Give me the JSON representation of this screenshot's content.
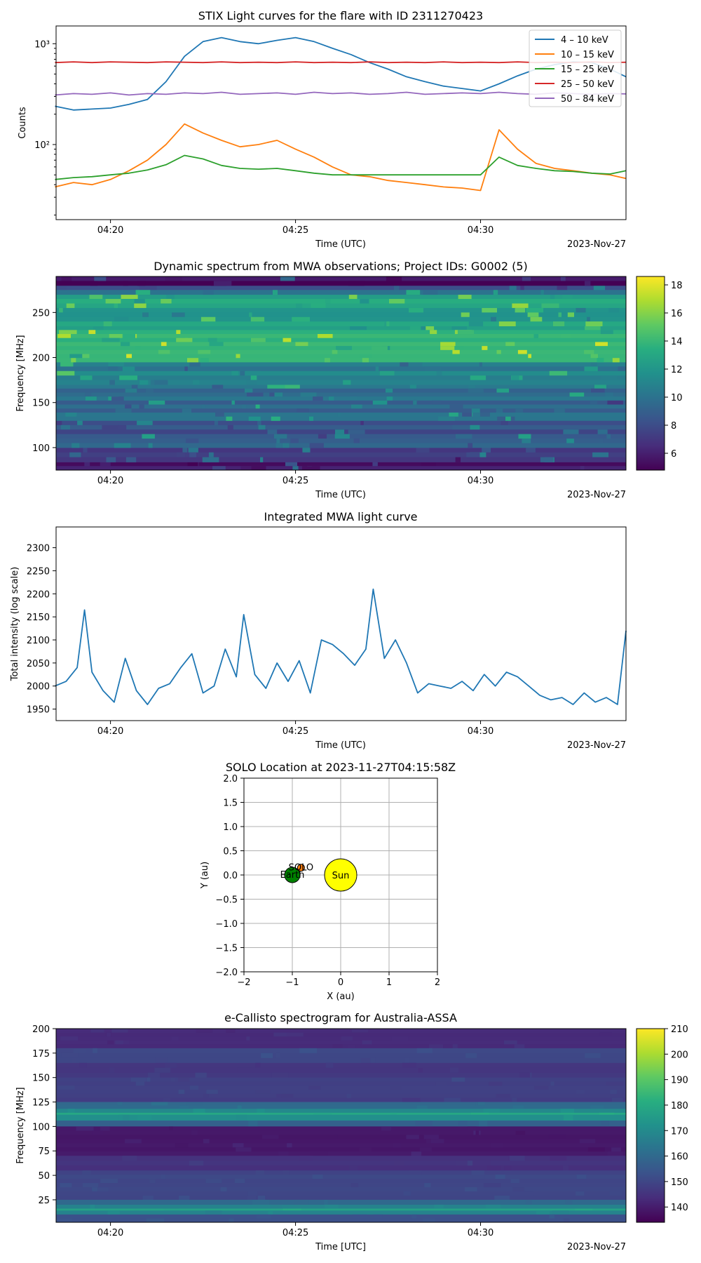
{
  "chart_data": [
    {
      "type": "line",
      "title": "STIX Light curves for the flare with ID 2311270423",
      "xlabel": "Time (UTC)",
      "ylabel": "Counts",
      "date_label": "2023-Nov-27",
      "x_range": [
        "04:18:32",
        "04:33:56"
      ],
      "x_ticks": [
        "04:20",
        "04:25",
        "04:30"
      ],
      "y_scale": "log",
      "ylim": [
        18,
        1500
      ],
      "y_ticks": [
        "10²",
        "10³"
      ],
      "legend_position": "top-right",
      "x_minutes": [
        18.5,
        19.0,
        19.5,
        20.0,
        20.5,
        21.0,
        21.5,
        22.0,
        22.5,
        23.0,
        23.5,
        24.0,
        24.5,
        25.0,
        25.5,
        26.0,
        26.5,
        27.0,
        27.5,
        28.0,
        28.5,
        29.0,
        29.5,
        30.0,
        30.5,
        31.0,
        31.5,
        32.0,
        32.5,
        33.0,
        33.5,
        33.93
      ],
      "series": [
        {
          "name": "4 – 10 keV",
          "color": "#1f77b4",
          "values": [
            240,
            220,
            225,
            230,
            250,
            280,
            420,
            750,
            1050,
            1150,
            1050,
            1000,
            1080,
            1150,
            1050,
            900,
            780,
            650,
            560,
            470,
            420,
            380,
            360,
            340,
            400,
            480,
            560,
            620,
            660,
            650,
            560,
            470
          ]
        },
        {
          "name": "10 – 15 keV",
          "color": "#ff7f0e",
          "values": [
            38,
            42,
            40,
            45,
            55,
            70,
            100,
            160,
            130,
            110,
            95,
            100,
            110,
            90,
            75,
            60,
            50,
            48,
            44,
            42,
            40,
            38,
            37,
            35,
            140,
            90,
            65,
            58,
            55,
            52,
            50,
            46
          ]
        },
        {
          "name": "15 – 25 keV",
          "color": "#2ca02c",
          "values": [
            45,
            47,
            48,
            50,
            52,
            56,
            63,
            78,
            72,
            62,
            58,
            57,
            58,
            55,
            52,
            50,
            50,
            50,
            50,
            50,
            50,
            50,
            50,
            50,
            75,
            62,
            58,
            55,
            54,
            52,
            51,
            55
          ]
        },
        {
          "name": "25 – 50 keV",
          "color": "#d62728",
          "values": [
            650,
            660,
            650,
            660,
            655,
            650,
            660,
            655,
            650,
            660,
            650,
            655,
            650,
            660,
            650,
            655,
            650,
            660,
            650,
            655,
            650,
            660,
            650,
            655,
            650,
            660,
            650,
            655,
            650,
            660,
            650,
            655
          ]
        },
        {
          "name": "50 – 84 keV",
          "color": "#9467bd",
          "values": [
            310,
            320,
            315,
            325,
            310,
            320,
            315,
            325,
            320,
            330,
            315,
            320,
            325,
            315,
            330,
            320,
            325,
            315,
            320,
            330,
            315,
            320,
            325,
            320,
            330,
            320,
            315,
            325,
            320,
            315,
            320,
            318
          ]
        }
      ]
    },
    {
      "type": "heatmap",
      "title": "Dynamic spectrum from MWA observations; Project IDs: G0002 (5)",
      "ylabel": "Frequency [MHz]",
      "xlabel": "Time (UTC)",
      "date_label": "2023-Nov-27",
      "x_ticks": [
        "04:20",
        "04:25",
        "04:30"
      ],
      "ylim": [
        75,
        290
      ],
      "y_ticks": [
        100,
        150,
        200,
        250
      ],
      "colorbar": {
        "min": 4.8,
        "max": 18.6,
        "ticks": [
          6,
          8,
          10,
          12,
          14,
          16,
          18
        ],
        "colormap": "viridis"
      },
      "band_levels": [
        {
          "freq_from": 75,
          "freq_to": 84,
          "level": 5.2
        },
        {
          "freq_from": 84,
          "freq_to": 100,
          "level": 7.5
        },
        {
          "freq_from": 100,
          "freq_to": 130,
          "level": 8.6
        },
        {
          "freq_from": 130,
          "freq_to": 170,
          "level": 9.6
        },
        {
          "freq_from": 170,
          "freq_to": 195,
          "level": 11.0
        },
        {
          "freq_from": 195,
          "freq_to": 235,
          "level": 13.4
        },
        {
          "freq_from": 235,
          "freq_to": 270,
          "level": 12.4
        },
        {
          "freq_from": 270,
          "freq_to": 280,
          "level": 9.0
        },
        {
          "freq_from": 280,
          "freq_to": 290,
          "level": 5.2
        }
      ]
    },
    {
      "type": "line",
      "title": "Integrated MWA light curve",
      "ylabel": "Total intensity (log scale)",
      "xlabel": "Time (UTC)",
      "date_label": "2023-Nov-27",
      "x_ticks": [
        "04:20",
        "04:25",
        "04:30"
      ],
      "ylim": [
        1925,
        2345
      ],
      "y_ticks": [
        1950,
        2000,
        2050,
        2100,
        2150,
        2200,
        2250,
        2300
      ],
      "x_minutes": [
        18.5,
        18.8,
        19.1,
        19.3,
        19.5,
        19.8,
        20.1,
        20.4,
        20.7,
        21.0,
        21.3,
        21.6,
        21.9,
        22.2,
        22.5,
        22.8,
        23.1,
        23.4,
        23.6,
        23.9,
        24.2,
        24.5,
        24.8,
        25.1,
        25.4,
        25.7,
        26.0,
        26.3,
        26.6,
        26.9,
        27.1,
        27.4,
        27.7,
        28.0,
        28.3,
        28.6,
        28.9,
        29.2,
        29.5,
        29.8,
        30.1,
        30.4,
        30.7,
        31.0,
        31.3,
        31.6,
        31.9,
        32.2,
        32.5,
        32.8,
        33.1,
        33.4,
        33.7,
        33.93
      ],
      "series": [
        {
          "name": "",
          "color": "#1f77b4",
          "values": [
            2000,
            2010,
            2040,
            2165,
            2030,
            1990,
            1965,
            2060,
            1990,
            1960,
            1995,
            2005,
            2040,
            2070,
            1985,
            2000,
            2080,
            2020,
            2155,
            2025,
            1995,
            2050,
            2010,
            2055,
            1985,
            2100,
            2090,
            2070,
            2045,
            2080,
            2210,
            2060,
            2100,
            2050,
            1985,
            2005,
            2000,
            1995,
            2010,
            1990,
            2025,
            2000,
            2030,
            2020,
            2000,
            1980,
            1970,
            1975,
            1960,
            1985,
            1965,
            1975,
            1960,
            2120
          ]
        }
      ]
    },
    {
      "type": "scatter",
      "title": "SOLO Location at 2023-11-27T04:15:58Z",
      "xlabel": "X (au)",
      "ylabel": "Y (au)",
      "xlim": [
        -2,
        2
      ],
      "ylim": [
        -2,
        2
      ],
      "x_ticks": [
        -2,
        -1,
        0,
        1,
        2
      ],
      "y_ticks": [
        "2.0",
        "1.5",
        "1.0",
        "0.5",
        "0.0",
        "−0.5",
        "−1.0",
        "−1.5",
        "−2.0"
      ],
      "grid": true,
      "points": [
        {
          "name": "Sun",
          "x": 0.0,
          "y": 0.0,
          "color": "#ffff00"
        },
        {
          "name": "Earth",
          "x": -1.0,
          "y": 0.0,
          "color": "#008000"
        },
        {
          "name": "SOLO",
          "x": -0.82,
          "y": 0.15,
          "color": "#ff7f0e"
        }
      ]
    },
    {
      "type": "heatmap",
      "title": "e-Callisto spectrogram for Australia-ASSA",
      "ylabel": "Frequency [MHz]",
      "xlabel": "Time [UTC]",
      "date_label": "2023-Nov-27",
      "x_ticks": [
        "04:20",
        "04:25",
        "04:30"
      ],
      "ylim": [
        2,
        200
      ],
      "y_ticks": [
        25,
        50,
        75,
        100,
        125,
        150,
        175,
        200
      ],
      "colorbar": {
        "min": 134,
        "max": 210,
        "ticks": [
          140,
          150,
          160,
          170,
          180,
          190,
          200,
          210
        ],
        "colormap": "viridis"
      },
      "band_levels": [
        {
          "freq_from": 180,
          "freq_to": 200,
          "level": 143
        },
        {
          "freq_from": 165,
          "freq_to": 180,
          "level": 150
        },
        {
          "freq_from": 150,
          "freq_to": 165,
          "level": 146
        },
        {
          "freq_from": 125,
          "freq_to": 150,
          "level": 148
        },
        {
          "freq_from": 118,
          "freq_to": 125,
          "level": 160
        },
        {
          "freq_from": 114,
          "freq_to": 118,
          "level": 170
        },
        {
          "freq_from": 112,
          "freq_to": 114,
          "level": 180
        },
        {
          "freq_from": 106,
          "freq_to": 112,
          "level": 172
        },
        {
          "freq_from": 100,
          "freq_to": 106,
          "level": 158
        },
        {
          "freq_from": 70,
          "freq_to": 100,
          "level": 139
        },
        {
          "freq_from": 55,
          "freq_to": 70,
          "level": 145
        },
        {
          "freq_from": 25,
          "freq_to": 55,
          "level": 150
        },
        {
          "freq_from": 20,
          "freq_to": 25,
          "level": 160
        },
        {
          "freq_from": 16,
          "freq_to": 20,
          "level": 168
        },
        {
          "freq_from": 14,
          "freq_to": 16,
          "level": 178
        },
        {
          "freq_from": 10,
          "freq_to": 14,
          "level": 168
        },
        {
          "freq_from": 2,
          "freq_to": 10,
          "level": 152
        }
      ]
    }
  ]
}
